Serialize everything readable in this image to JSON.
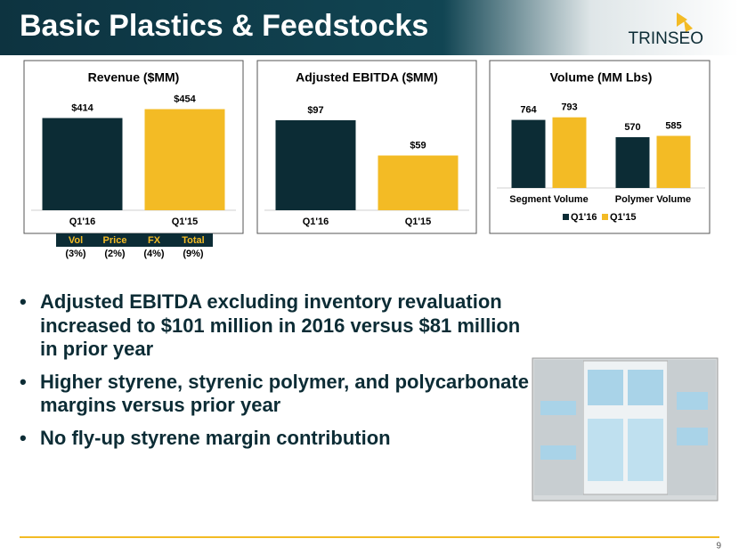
{
  "title": "Basic Plastics & Feedstocks",
  "logo": "TRINSEO",
  "chart_data": [
    {
      "type": "bar",
      "title": "Revenue ($MM)",
      "categories": [
        "Q1'16",
        "Q1'15"
      ],
      "values": [
        414,
        454
      ],
      "value_labels": [
        "$414",
        "$454"
      ],
      "colors": [
        "#0c2c35",
        "#f3bb25"
      ],
      "ylim": [
        0,
        500
      ]
    },
    {
      "type": "bar",
      "title": "Adjusted EBITDA ($MM)",
      "categories": [
        "Q1'16",
        "Q1'15"
      ],
      "values": [
        97,
        59
      ],
      "value_labels": [
        "$97",
        "$59"
      ],
      "colors": [
        "#0c2c35",
        "#f3bb25"
      ],
      "ylim": [
        0,
        120
      ]
    },
    {
      "type": "grouped_bar",
      "title": "Volume (MM Lbs)",
      "categories": [
        "Segment Volume",
        "Polymer Volume"
      ],
      "series": [
        {
          "name": "Q1'16",
          "color": "#0c2c35",
          "values": [
            764,
            570
          ]
        },
        {
          "name": "Q1'15",
          "color": "#f3bb25",
          "values": [
            793,
            585
          ]
        }
      ],
      "ylim": [
        0,
        1000
      ],
      "legend": "bottom"
    }
  ],
  "table": {
    "header": [
      "Vol",
      "Price",
      "FX",
      "Total"
    ],
    "rows": [
      [
        "(3%)",
        "(2%)",
        "(4%)",
        "(9%)"
      ]
    ]
  },
  "bullets": [
    "Adjusted EBITDA excluding inventory revaluation increased to $101 million in 2016 versus $81 million in prior year",
    "Higher styrene, styrenic polymer, and polycarbonate margins versus prior year",
    "No fly-up styrene margin contribution"
  ],
  "page_number": "9"
}
